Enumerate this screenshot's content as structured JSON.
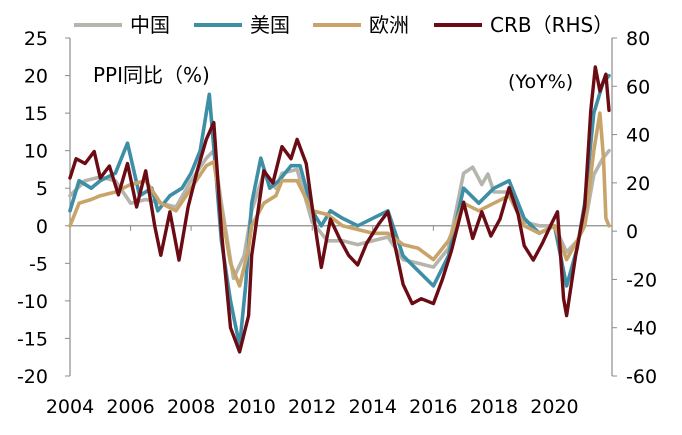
{
  "chart_data": {
    "type": "line",
    "title": "PPI同比（%)",
    "right_axis_label": "(YoY%)",
    "x_ticks": [
      "2004",
      "2006",
      "2008",
      "2010",
      "2012",
      "2014",
      "2016",
      "2018",
      "2020"
    ],
    "y_left_ticks": [
      25,
      20,
      15,
      10,
      5,
      0,
      -5,
      -10,
      -15,
      -20
    ],
    "y_right_ticks": [
      80,
      60,
      40,
      20,
      0,
      -20,
      -40,
      -60
    ],
    "y_left_lim": [
      -20,
      25
    ],
    "y_right_lim": [
      -60,
      80
    ],
    "x_lim": [
      2004,
      2021.9
    ],
    "grid": false,
    "legend_position": "top",
    "series": [
      {
        "name": "中国",
        "axis": "left",
        "color": "#b5b5ad",
        "points": [
          [
            2004,
            4
          ],
          [
            2004.5,
            6
          ],
          [
            2005,
            6.5
          ],
          [
            2005.5,
            6
          ],
          [
            2006,
            3
          ],
          [
            2006.5,
            3.5
          ],
          [
            2007,
            3
          ],
          [
            2007.5,
            2.5
          ],
          [
            2008,
            6
          ],
          [
            2008.5,
            9
          ],
          [
            2008.75,
            10
          ],
          [
            2009,
            3
          ],
          [
            2009.4,
            -7
          ],
          [
            2009.75,
            -4
          ],
          [
            2010,
            2
          ],
          [
            2010.4,
            7
          ],
          [
            2010.8,
            5
          ],
          [
            2011,
            7
          ],
          [
            2011.5,
            7.5
          ],
          [
            2012,
            0.5
          ],
          [
            2012.5,
            -2
          ],
          [
            2013,
            -2
          ],
          [
            2013.5,
            -2.5
          ],
          [
            2014,
            -2
          ],
          [
            2014.5,
            -1.5
          ],
          [
            2015,
            -4.5
          ],
          [
            2015.5,
            -5
          ],
          [
            2016,
            -5.5
          ],
          [
            2016.5,
            -3
          ],
          [
            2017,
            7
          ],
          [
            2017.3,
            7.8
          ],
          [
            2017.6,
            5.5
          ],
          [
            2017.8,
            6.9
          ],
          [
            2018,
            4.5
          ],
          [
            2018.5,
            4.5
          ],
          [
            2019,
            0.5
          ],
          [
            2019.5,
            0
          ],
          [
            2020,
            0
          ],
          [
            2020.4,
            -3.5
          ],
          [
            2020.75,
            -2
          ],
          [
            2021,
            0
          ],
          [
            2021.3,
            6.8
          ],
          [
            2021.6,
            9
          ],
          [
            2021.8,
            10
          ]
        ]
      },
      {
        "name": "美国",
        "axis": "left",
        "color": "#3e8ea6",
        "points": [
          [
            2004,
            2
          ],
          [
            2004.3,
            6
          ],
          [
            2004.7,
            5
          ],
          [
            2005,
            6
          ],
          [
            2005.5,
            7
          ],
          [
            2005.9,
            11
          ],
          [
            2006.3,
            4
          ],
          [
            2006.7,
            5
          ],
          [
            2006.9,
            2
          ],
          [
            2007.3,
            4
          ],
          [
            2007.7,
            5
          ],
          [
            2008,
            7
          ],
          [
            2008.3,
            10
          ],
          [
            2008.6,
            17.5
          ],
          [
            2008.8,
            8
          ],
          [
            2009,
            -2
          ],
          [
            2009.3,
            -10
          ],
          [
            2009.6,
            -16
          ],
          [
            2009.8,
            -8
          ],
          [
            2010,
            3
          ],
          [
            2010.3,
            9
          ],
          [
            2010.6,
            5
          ],
          [
            2010.9,
            6
          ],
          [
            2011.3,
            8
          ],
          [
            2011.6,
            8
          ],
          [
            2012,
            2
          ],
          [
            2012.3,
            0
          ],
          [
            2012.6,
            2
          ],
          [
            2013,
            1
          ],
          [
            2013.5,
            0
          ],
          [
            2014,
            1
          ],
          [
            2014.5,
            2
          ],
          [
            2015,
            -4
          ],
          [
            2015.5,
            -6
          ],
          [
            2016,
            -8
          ],
          [
            2016.5,
            -4
          ],
          [
            2017,
            5
          ],
          [
            2017.5,
            3
          ],
          [
            2018,
            5
          ],
          [
            2018.5,
            6
          ],
          [
            2019,
            1
          ],
          [
            2019.5,
            -1
          ],
          [
            2020,
            0
          ],
          [
            2020.4,
            -8
          ],
          [
            2020.75,
            -3
          ],
          [
            2021,
            3
          ],
          [
            2021.3,
            15
          ],
          [
            2021.6,
            19
          ],
          [
            2021.8,
            20
          ]
        ]
      },
      {
        "name": "欧洲",
        "axis": "left",
        "color": "#c9a46a",
        "points": [
          [
            2004,
            0
          ],
          [
            2004.3,
            3
          ],
          [
            2004.7,
            3.5
          ],
          [
            2005,
            4
          ],
          [
            2005.5,
            4.5
          ],
          [
            2006,
            5.5
          ],
          [
            2006.5,
            6
          ],
          [
            2007,
            3
          ],
          [
            2007.5,
            2
          ],
          [
            2008,
            5
          ],
          [
            2008.5,
            8
          ],
          [
            2008.75,
            8.5
          ],
          [
            2009,
            2
          ],
          [
            2009.3,
            -5
          ],
          [
            2009.6,
            -8
          ],
          [
            2009.9,
            -3
          ],
          [
            2010,
            0
          ],
          [
            2010.4,
            3
          ],
          [
            2010.8,
            4
          ],
          [
            2011,
            6
          ],
          [
            2011.5,
            6
          ],
          [
            2012,
            2
          ],
          [
            2012.5,
            1.5
          ],
          [
            2013,
            0
          ],
          [
            2013.5,
            -0.5
          ],
          [
            2014,
            -1
          ],
          [
            2014.5,
            -1
          ],
          [
            2015,
            -2.5
          ],
          [
            2015.5,
            -3
          ],
          [
            2016,
            -4.5
          ],
          [
            2016.5,
            -2
          ],
          [
            2017,
            3
          ],
          [
            2017.5,
            2
          ],
          [
            2018,
            3
          ],
          [
            2018.5,
            4
          ],
          [
            2019,
            0
          ],
          [
            2019.5,
            -1
          ],
          [
            2020,
            0
          ],
          [
            2020.4,
            -4.5
          ],
          [
            2020.75,
            -2
          ],
          [
            2021,
            0
          ],
          [
            2021.3,
            10
          ],
          [
            2021.5,
            15
          ],
          [
            2021.62,
            9
          ],
          [
            2021.7,
            1
          ],
          [
            2021.8,
            0
          ]
        ]
      },
      {
        "name": "CRB（RHS）",
        "axis": "right",
        "color": "#6b0b14",
        "points": [
          [
            2004,
            22
          ],
          [
            2004.2,
            30
          ],
          [
            2004.5,
            28
          ],
          [
            2004.8,
            33
          ],
          [
            2005,
            22
          ],
          [
            2005.3,
            27
          ],
          [
            2005.6,
            15
          ],
          [
            2005.9,
            28
          ],
          [
            2006.2,
            10
          ],
          [
            2006.5,
            25
          ],
          [
            2006.8,
            2
          ],
          [
            2007,
            -10
          ],
          [
            2007.3,
            8
          ],
          [
            2007.6,
            -12
          ],
          [
            2007.9,
            10
          ],
          [
            2008.2,
            25
          ],
          [
            2008.5,
            38
          ],
          [
            2008.75,
            45
          ],
          [
            2009,
            0
          ],
          [
            2009.3,
            -40
          ],
          [
            2009.6,
            -50
          ],
          [
            2009.9,
            -35
          ],
          [
            2010,
            -10
          ],
          [
            2010.4,
            25
          ],
          [
            2010.7,
            20
          ],
          [
            2011,
            35
          ],
          [
            2011.3,
            30
          ],
          [
            2011.5,
            38
          ],
          [
            2011.8,
            28
          ],
          [
            2012,
            10
          ],
          [
            2012.3,
            -15
          ],
          [
            2012.6,
            5
          ],
          [
            2012.9,
            -3
          ],
          [
            2013.2,
            -10
          ],
          [
            2013.5,
            -14
          ],
          [
            2013.8,
            -5
          ],
          [
            2014.2,
            3
          ],
          [
            2014.5,
            8
          ],
          [
            2014.8,
            -10
          ],
          [
            2015,
            -22
          ],
          [
            2015.3,
            -30
          ],
          [
            2015.6,
            -28
          ],
          [
            2016,
            -30
          ],
          [
            2016.3,
            -20
          ],
          [
            2016.6,
            -8
          ],
          [
            2017,
            12
          ],
          [
            2017.3,
            -3
          ],
          [
            2017.6,
            8
          ],
          [
            2017.9,
            -2
          ],
          [
            2018.2,
            5
          ],
          [
            2018.5,
            18
          ],
          [
            2018.8,
            7
          ],
          [
            2019,
            -6
          ],
          [
            2019.3,
            -12
          ],
          [
            2019.6,
            -5
          ],
          [
            2019.9,
            3
          ],
          [
            2020.1,
            8
          ],
          [
            2020.3,
            -28
          ],
          [
            2020.4,
            -35
          ],
          [
            2020.7,
            -10
          ],
          [
            2021,
            10
          ],
          [
            2021.2,
            50
          ],
          [
            2021.35,
            68
          ],
          [
            2021.5,
            58
          ],
          [
            2021.7,
            65
          ],
          [
            2021.8,
            50
          ]
        ]
      }
    ]
  }
}
